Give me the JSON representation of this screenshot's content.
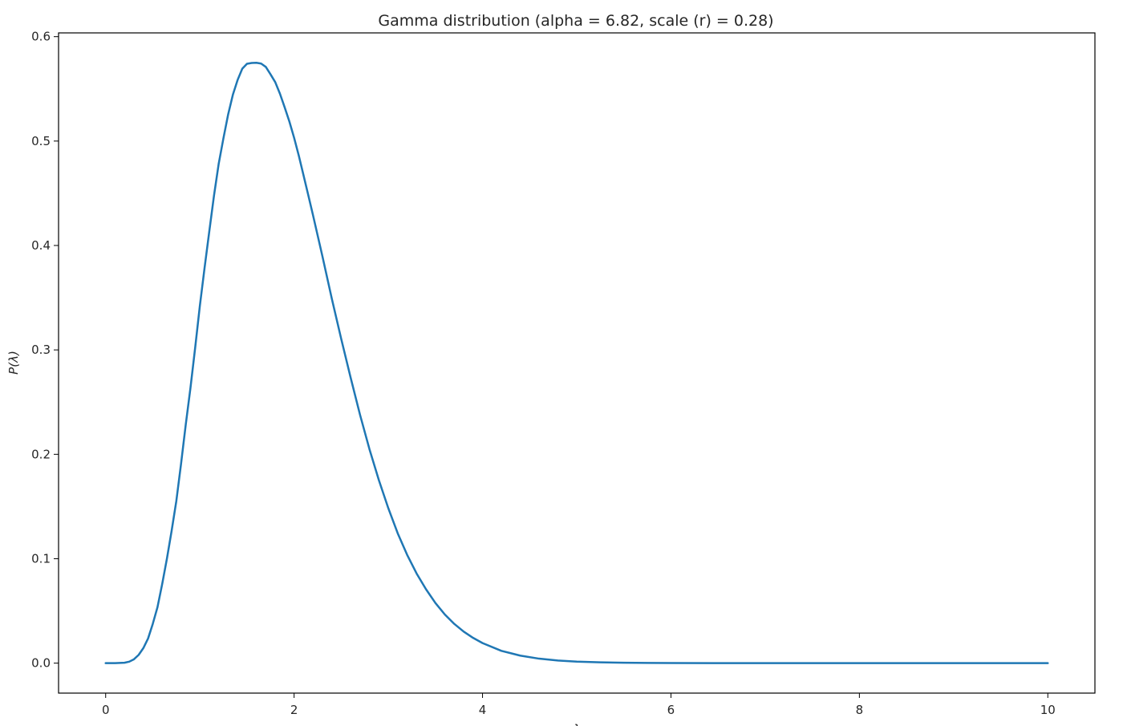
{
  "chart_data": {
    "type": "line",
    "title": "Gamma distribution (alpha = 6.82, scale (r)  = 0.28)",
    "xlabel": "λ",
    "ylabel": "P(λ)",
    "xlim": [
      -0.5,
      10.5
    ],
    "ylim": [
      -0.0287,
      0.6036
    ],
    "xticks": [
      0,
      2,
      4,
      6,
      8,
      10
    ],
    "xtick_labels": [
      "0",
      "2",
      "4",
      "6",
      "8",
      "10"
    ],
    "yticks": [
      0.0,
      0.1,
      0.2,
      0.3,
      0.4,
      0.5,
      0.6
    ],
    "ytick_labels": [
      "0.0",
      "0.1",
      "0.2",
      "0.3",
      "0.4",
      "0.5",
      "0.6"
    ],
    "grid": false,
    "line_color": "#1f77b4",
    "series": [
      {
        "x": [
          0,
          0.1,
          0.2,
          0.25,
          0.3,
          0.35,
          0.4,
          0.45,
          0.5,
          0.55,
          0.6,
          0.65,
          0.7,
          0.75,
          0.8,
          0.85,
          0.9,
          0.95,
          1.0,
          1.05,
          1.1,
          1.15,
          1.2,
          1.25,
          1.3,
          1.35,
          1.4,
          1.45,
          1.5,
          1.55,
          1.6,
          1.65,
          1.7,
          1.75,
          1.8,
          1.85,
          1.9,
          1.95,
          2.0,
          2.05,
          2.1,
          2.15,
          2.2,
          2.25,
          2.3,
          2.4,
          2.5,
          2.6,
          2.7,
          2.8,
          2.9,
          3.0,
          3.1,
          3.2,
          3.3,
          3.4,
          3.5,
          3.6,
          3.7,
          3.8,
          3.9,
          4.0,
          4.2,
          4.4,
          4.6,
          4.8,
          5.0,
          5.25,
          5.5,
          5.75,
          6.0,
          6.5,
          7.0,
          7.5,
          8.0,
          8.5,
          9.0,
          9.5,
          10.0
        ],
        "values": [
          0.0,
          0.0,
          0.0004,
          0.0014,
          0.0037,
          0.0079,
          0.0144,
          0.0236,
          0.0376,
          0.0536,
          0.0758,
          0.1,
          0.1267,
          0.1553,
          0.1908,
          0.2284,
          0.2636,
          0.3021,
          0.3424,
          0.3787,
          0.4136,
          0.4479,
          0.4784,
          0.5027,
          0.5255,
          0.5443,
          0.5584,
          0.5693,
          0.574,
          0.5748,
          0.575,
          0.5742,
          0.571,
          0.5639,
          0.5564,
          0.5453,
          0.5323,
          0.5187,
          0.5032,
          0.486,
          0.4673,
          0.4484,
          0.4293,
          0.4096,
          0.3899,
          0.3492,
          0.3106,
          0.2735,
          0.2378,
          0.2049,
          0.1752,
          0.1484,
          0.1243,
          0.1037,
          0.0859,
          0.0708,
          0.0576,
          0.0466,
          0.0376,
          0.0302,
          0.0242,
          0.0192,
          0.0118,
          0.0072,
          0.0043,
          0.0025,
          0.0015,
          0.0008,
          0.0004,
          0.0002,
          0.0001,
          0.0,
          0.0,
          0.0,
          0.0,
          0.0,
          0.0,
          0.0,
          0.0
        ]
      }
    ]
  }
}
